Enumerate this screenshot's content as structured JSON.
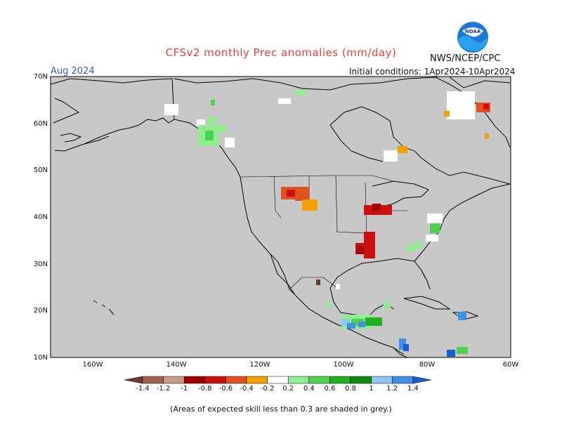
{
  "header": {
    "title": "CFSv2 monthly Prec anomalies (mm/day)",
    "org": "NWS/NCEP/CPC",
    "month": "Aug 2024",
    "initial_conditions": "Initial conditions: 1Apr2024-10Apr2024",
    "logo_text": "NOAA"
  },
  "axes": {
    "lat_labels": [
      "70N",
      "60N",
      "50N",
      "40N",
      "30N",
      "20N",
      "10N"
    ],
    "lon_labels": [
      "160W",
      "140W",
      "120W",
      "100W",
      "80W",
      "60W"
    ]
  },
  "legend": {
    "labels": [
      "-1.4",
      "-1.2",
      "-1",
      "-0.8",
      "-0.6",
      "-0.4",
      "-0.2",
      "0.2",
      "0.4",
      "0.6",
      "0.8",
      "1",
      "1.2",
      "1.4"
    ],
    "colors": [
      "#6b3a2e",
      "#a0624e",
      "#c89a8a",
      "#a00000",
      "#cc1010",
      "#e05020",
      "#f5a000",
      "#ffffff",
      "#90ee90",
      "#50d050",
      "#20b020",
      "#108a10",
      "#8ec8f0",
      "#4090e8",
      "#1860d0"
    ]
  },
  "footnote": "(Areas of expected skill less than 0.3 are shaded in grey.)",
  "chart_data": {
    "type": "heatmap",
    "lon_range": [
      -170,
      -60
    ],
    "lat_range": [
      10,
      70
    ],
    "grey_meaning": "skill less than 0.3"
  }
}
